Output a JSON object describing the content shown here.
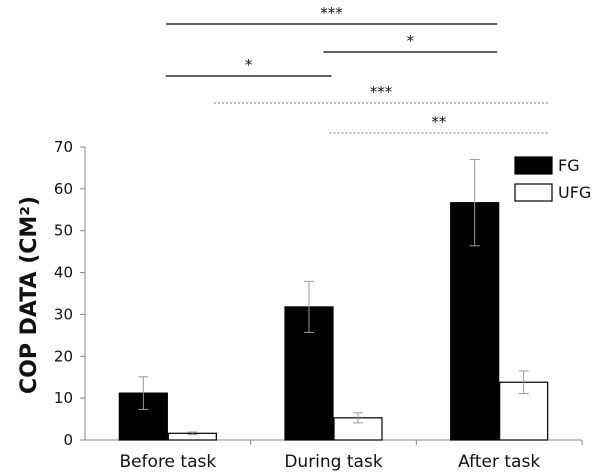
{
  "chart_data": {
    "type": "bar",
    "ylabel": "COP DATA (CM²)",
    "ylim": [
      0,
      70
    ],
    "yticks": [
      0,
      10,
      20,
      30,
      40,
      50,
      60,
      70
    ],
    "categories": [
      "Before task",
      "During task",
      "After task"
    ],
    "series": [
      {
        "name": "FG",
        "values": [
          11.2,
          31.8,
          56.7
        ],
        "errors": [
          3.9,
          6.1,
          10.3
        ],
        "fill": "#000000"
      },
      {
        "name": "UFG",
        "values": [
          1.6,
          5.3,
          13.8
        ],
        "errors": [
          0.3,
          1.2,
          2.7
        ],
        "fill": "#ffffff"
      }
    ],
    "legend_position": "top-right",
    "grid": false,
    "significance": [
      {
        "from": "Before task",
        "to": "After task",
        "label": "***",
        "style": "solid"
      },
      {
        "from": "During task",
        "to": "After task",
        "label": "*",
        "style": "solid"
      },
      {
        "from": "Before task",
        "to": "During task",
        "label": "*",
        "style": "solid"
      },
      {
        "from": "Before task",
        "to": "After task",
        "label": "***",
        "style": "dotted"
      },
      {
        "from": "During task",
        "to": "After task",
        "label": "**",
        "style": "dotted"
      }
    ]
  }
}
